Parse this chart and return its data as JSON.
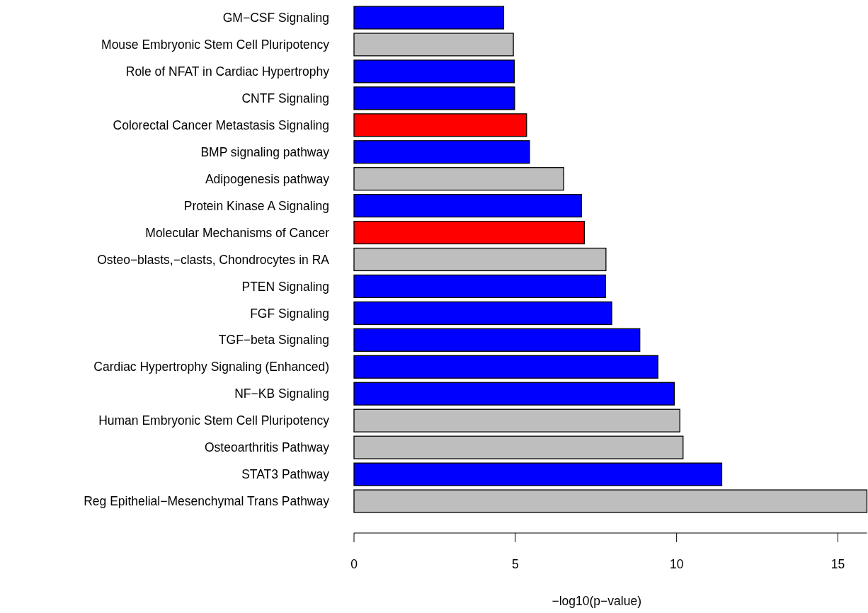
{
  "chart_data": {
    "type": "bar",
    "orientation": "horizontal",
    "xlabel": "−log10(p−value)",
    "categories": [
      "GM−CSF Signaling",
      "Mouse Embryonic Stem Cell Pluripotency",
      "Role of NFAT in Cardiac Hypertrophy",
      "CNTF Signaling",
      "Colorectal Cancer Metastasis Signaling",
      "BMP signaling pathway",
      "Adipogenesis pathway",
      "Protein Kinase A Signaling",
      "Molecular Mechanisms of Cancer",
      "Osteo−blasts,−clasts, Chondrocytes in RA",
      "PTEN Signaling",
      "FGF Signaling",
      "TGF−beta Signaling",
      "Cardiac Hypertrophy Signaling (Enhanced)",
      "NF−KB Signaling",
      "Human Embryonic Stem Cell Pluripotency",
      "Osteoarthritis Pathway",
      "STAT3 Pathway",
      "Reg Epithelial−Mesenchymal Trans Pathway"
    ],
    "values": [
      4.64,
      4.94,
      4.97,
      4.98,
      5.35,
      5.44,
      6.5,
      7.05,
      7.14,
      7.81,
      7.8,
      7.99,
      8.86,
      9.42,
      9.93,
      10.1,
      10.2,
      11.4,
      15.9
    ],
    "colors": [
      "#0000ff",
      "#bebebe",
      "#0000ff",
      "#0000ff",
      "#ff0000",
      "#0000ff",
      "#bebebe",
      "#0000ff",
      "#ff0000",
      "#bebebe",
      "#0000ff",
      "#0000ff",
      "#0000ff",
      "#0000ff",
      "#0000ff",
      "#bebebe",
      "#bebebe",
      "#0000ff",
      "#bebebe"
    ],
    "xlim": [
      0,
      15.9
    ],
    "xticks": [
      0,
      5,
      10,
      15
    ]
  }
}
